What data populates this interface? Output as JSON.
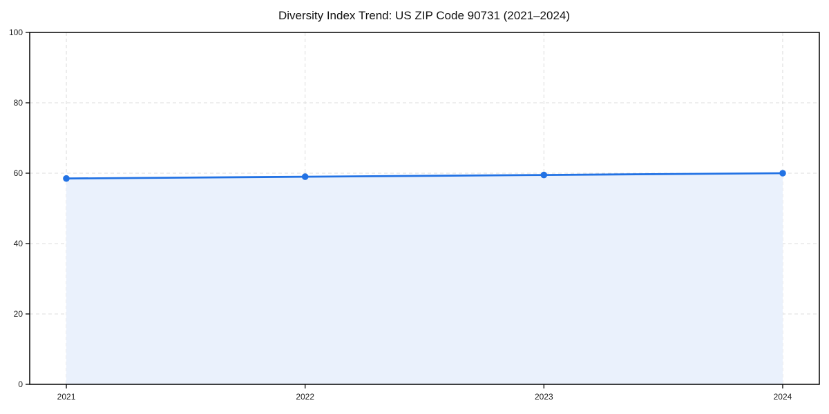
{
  "chart_data": {
    "type": "area",
    "title": "Diversity Index Trend: US ZIP Code 90731 (2021–2024)",
    "x": [
      "2021",
      "2022",
      "2023",
      "2024"
    ],
    "values": [
      58.5,
      59.0,
      59.5,
      60.0
    ],
    "xlabel": "",
    "ylabel": "",
    "ylim": [
      0,
      100
    ],
    "yticks": [
      0,
      20,
      40,
      60,
      80,
      100
    ],
    "grid": true,
    "grid_style": "dashed",
    "legend": "none",
    "colors": {
      "line": "#2272e4",
      "marker": "#2272e4",
      "fill": "#eaf1fc",
      "gridline": "#dcdcdc",
      "spine": "#000000",
      "title_text": "#111111",
      "tick_text": "#1a1a1a",
      "background": "#ffffff"
    }
  }
}
